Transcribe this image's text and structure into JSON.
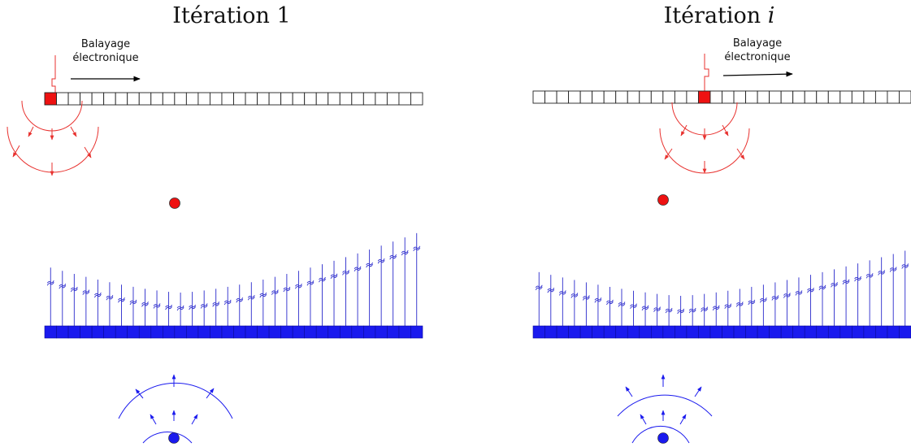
{
  "panels": [
    {
      "title_text": "Itération ",
      "title_var": "1",
      "sweep_label_line1": "Balayage",
      "sweep_label_line2": "électronique",
      "active_element_index": 0
    },
    {
      "title_text": "Itération ",
      "title_var": "i",
      "sweep_label_line1": "Balayage",
      "sweep_label_line2": "électronique",
      "active_element_index": 14
    }
  ],
  "colors": {
    "emitter_active": "#ee1111",
    "wave_red": "#e8322f",
    "receiver": "#1a1aee",
    "trace": "#2a2acc",
    "outline": "#222222"
  }
}
